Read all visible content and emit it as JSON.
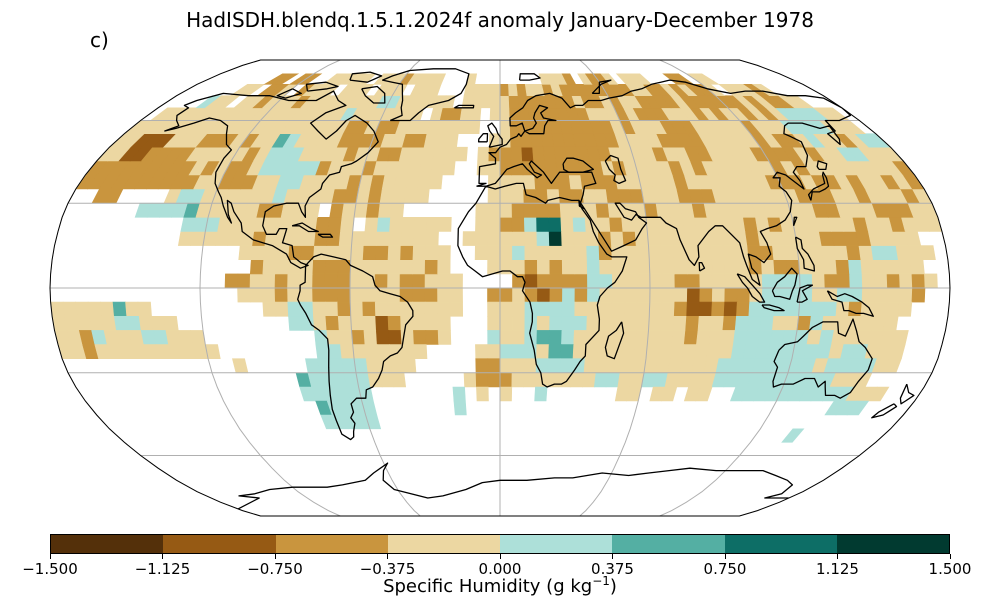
{
  "title": "HadISDH.blendq.1.5.1.2024f anomaly January-December 1978",
  "panel_label": "c)",
  "colorbar": {
    "label_main": "Specific Humidity (g kg",
    "label_exp": "−1",
    "label_end": ")",
    "ticks": [
      "−1.500",
      "−1.125",
      "−0.750",
      "−0.375",
      "0.000",
      "0.375",
      "0.750",
      "1.125",
      "1.500"
    ],
    "colors": [
      "#543005",
      "#8c510a",
      "#bf812d",
      "#dfc27d",
      "#f6e8c3",
      "#c7eae5",
      "#80cdc1",
      "#35978f",
      "#01665e",
      "#003c30"
    ],
    "bin_colors": [
      "#54300a",
      "#965a14",
      "#c9953e",
      "#ecd7a2",
      "#ade0d9",
      "#54afa3",
      "#0d6e66",
      "#013a30"
    ]
  },
  "map": {
    "projection": "Robinson",
    "grid": true,
    "layer": "gridded specific humidity anomaly, 5°×5°"
  }
}
